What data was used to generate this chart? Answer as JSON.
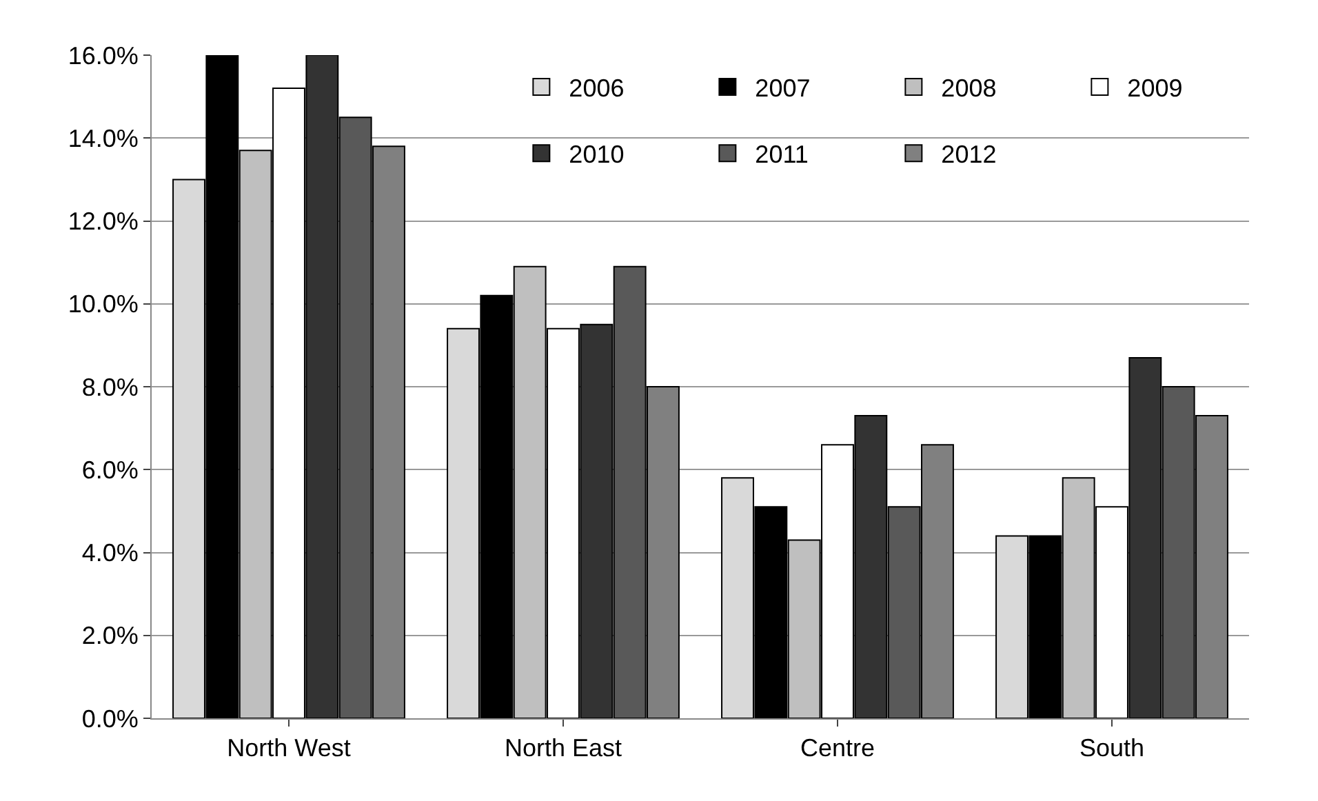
{
  "chart_data": {
    "type": "bar",
    "categories": [
      "North West",
      "North East",
      "Centre",
      "South"
    ],
    "series": [
      {
        "name": "2006",
        "color": "#d9d9d9",
        "values": [
          13.0,
          9.4,
          5.8,
          4.4
        ]
      },
      {
        "name": "2007",
        "color": "#000000",
        "values": [
          16.0,
          10.2,
          5.1,
          4.4
        ]
      },
      {
        "name": "2008",
        "color": "#bfbfbf",
        "values": [
          13.7,
          10.9,
          4.3,
          5.8
        ]
      },
      {
        "name": "2009",
        "color": "#ffffff",
        "values": [
          15.2,
          9.4,
          6.6,
          5.1
        ]
      },
      {
        "name": "2010",
        "color": "#333333",
        "values": [
          16.0,
          9.5,
          7.3,
          8.7
        ]
      },
      {
        "name": "2011",
        "color": "#595959",
        "values": [
          14.5,
          10.9,
          5.1,
          8.0
        ]
      },
      {
        "name": "2012",
        "color": "#808080",
        "values": [
          13.8,
          8.0,
          6.6,
          7.3
        ]
      }
    ],
    "ylim": [
      0,
      16
    ],
    "yticks": [
      {
        "value": 0,
        "label": "0.0%"
      },
      {
        "value": 2,
        "label": "2.0%"
      },
      {
        "value": 4,
        "label": "4.0%"
      },
      {
        "value": 6,
        "label": "6.0%"
      },
      {
        "value": 8,
        "label": "8.0%"
      },
      {
        "value": 10,
        "label": "10.0%"
      },
      {
        "value": 12,
        "label": "12.0%"
      },
      {
        "value": 14,
        "label": "14.0%"
      },
      {
        "value": 16,
        "label": "16.0%"
      }
    ],
    "grid": "y",
    "legend": "top right"
  }
}
